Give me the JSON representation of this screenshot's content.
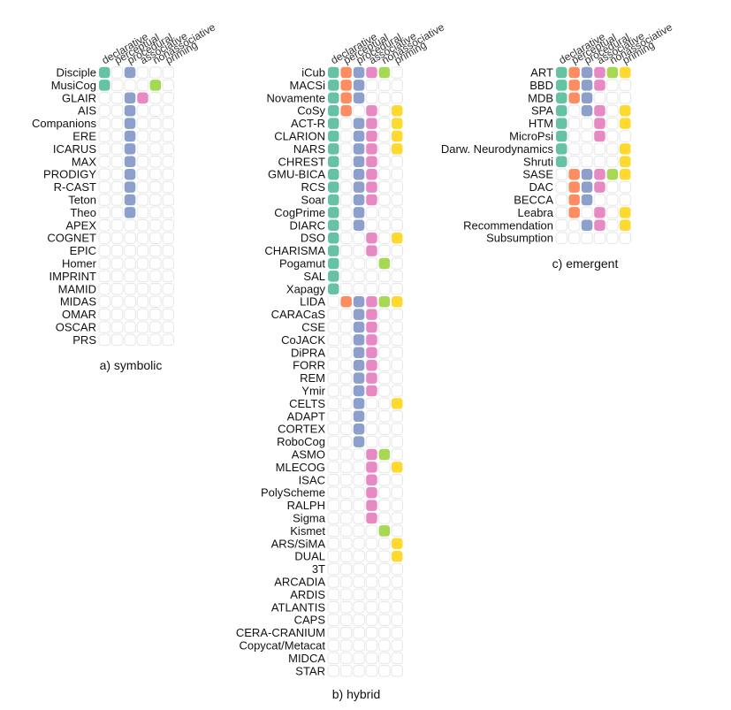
{
  "chart_data": {
    "type": "heatmap",
    "columns": [
      "declarative",
      "perceptual",
      "procedural",
      "associative",
      "nonassociative",
      "priming"
    ],
    "colors": {
      "declarative": "#66c2a5",
      "perceptual": "#fc8d62",
      "procedural": "#8da0cb",
      "associative": "#e78ac3",
      "nonassociative": "#a6d854",
      "priming": "#ffd92f",
      "empty_stroke": "#e6e6e6"
    },
    "panels": [
      {
        "title": "a) symbolic",
        "rows": [
          {
            "label": "Disciple",
            "values": [
              1,
              0,
              1,
              0,
              0,
              0
            ]
          },
          {
            "label": "MusiCog",
            "values": [
              1,
              0,
              0,
              0,
              1,
              0
            ]
          },
          {
            "label": "GLAIR",
            "values": [
              0,
              0,
              1,
              1,
              0,
              0
            ]
          },
          {
            "label": "AIS",
            "values": [
              0,
              0,
              1,
              0,
              0,
              0
            ]
          },
          {
            "label": "Companions",
            "values": [
              0,
              0,
              1,
              0,
              0,
              0
            ]
          },
          {
            "label": "ERE",
            "values": [
              0,
              0,
              1,
              0,
              0,
              0
            ]
          },
          {
            "label": "ICARUS",
            "values": [
              0,
              0,
              1,
              0,
              0,
              0
            ]
          },
          {
            "label": "MAX",
            "values": [
              0,
              0,
              1,
              0,
              0,
              0
            ]
          },
          {
            "label": "PRODIGY",
            "values": [
              0,
              0,
              1,
              0,
              0,
              0
            ]
          },
          {
            "label": "R-CAST",
            "values": [
              0,
              0,
              1,
              0,
              0,
              0
            ]
          },
          {
            "label": "Teton",
            "values": [
              0,
              0,
              1,
              0,
              0,
              0
            ]
          },
          {
            "label": "Theo",
            "values": [
              0,
              0,
              1,
              0,
              0,
              0
            ]
          },
          {
            "label": "APEX",
            "values": [
              0,
              0,
              0,
              0,
              0,
              0
            ]
          },
          {
            "label": "COGNET",
            "values": [
              0,
              0,
              0,
              0,
              0,
              0
            ]
          },
          {
            "label": "EPIC",
            "values": [
              0,
              0,
              0,
              0,
              0,
              0
            ]
          },
          {
            "label": "Homer",
            "values": [
              0,
              0,
              0,
              0,
              0,
              0
            ]
          },
          {
            "label": "IMPRINT",
            "values": [
              0,
              0,
              0,
              0,
              0,
              0
            ]
          },
          {
            "label": "MAMID",
            "values": [
              0,
              0,
              0,
              0,
              0,
              0
            ]
          },
          {
            "label": "MIDAS",
            "values": [
              0,
              0,
              0,
              0,
              0,
              0
            ]
          },
          {
            "label": "OMAR",
            "values": [
              0,
              0,
              0,
              0,
              0,
              0
            ]
          },
          {
            "label": "OSCAR",
            "values": [
              0,
              0,
              0,
              0,
              0,
              0
            ]
          },
          {
            "label": "PRS",
            "values": [
              0,
              0,
              0,
              0,
              0,
              0
            ]
          }
        ]
      },
      {
        "title": "b) hybrid",
        "rows": [
          {
            "label": "iCub",
            "values": [
              1,
              1,
              1,
              1,
              1,
              0
            ]
          },
          {
            "label": "MACSi",
            "values": [
              1,
              1,
              1,
              0,
              0,
              0
            ]
          },
          {
            "label": "Novamente",
            "values": [
              1,
              1,
              1,
              0,
              0,
              0
            ]
          },
          {
            "label": "CoSy",
            "values": [
              1,
              1,
              0,
              1,
              0,
              1
            ]
          },
          {
            "label": "ACT-R",
            "values": [
              1,
              0,
              1,
              1,
              0,
              1
            ]
          },
          {
            "label": "CLARION",
            "values": [
              1,
              0,
              1,
              1,
              0,
              1
            ]
          },
          {
            "label": "NARS",
            "values": [
              1,
              0,
              1,
              1,
              0,
              1
            ]
          },
          {
            "label": "CHREST",
            "values": [
              1,
              0,
              1,
              1,
              0,
              0
            ]
          },
          {
            "label": "GMU-BICA",
            "values": [
              1,
              0,
              1,
              1,
              0,
              0
            ]
          },
          {
            "label": "RCS",
            "values": [
              1,
              0,
              1,
              1,
              0,
              0
            ]
          },
          {
            "label": "Soar",
            "values": [
              1,
              0,
              1,
              1,
              0,
              0
            ]
          },
          {
            "label": "CogPrime",
            "values": [
              1,
              0,
              1,
              0,
              0,
              0
            ]
          },
          {
            "label": "DIARC",
            "values": [
              1,
              0,
              1,
              0,
              0,
              0
            ]
          },
          {
            "label": "DSO",
            "values": [
              1,
              0,
              0,
              1,
              0,
              1
            ]
          },
          {
            "label": "CHARISMA",
            "values": [
              1,
              0,
              0,
              1,
              0,
              0
            ]
          },
          {
            "label": "Pogamut",
            "values": [
              1,
              0,
              0,
              0,
              1,
              0
            ]
          },
          {
            "label": "SAL",
            "values": [
              1,
              0,
              0,
              0,
              0,
              0
            ]
          },
          {
            "label": "Xapagy",
            "values": [
              1,
              0,
              0,
              0,
              0,
              0
            ]
          },
          {
            "label": "LIDA",
            "values": [
              0,
              1,
              1,
              1,
              1,
              1
            ]
          },
          {
            "label": "CARACaS",
            "values": [
              0,
              0,
              1,
              1,
              0,
              0
            ]
          },
          {
            "label": "CSE",
            "values": [
              0,
              0,
              1,
              1,
              0,
              0
            ]
          },
          {
            "label": "CoJACK",
            "values": [
              0,
              0,
              1,
              1,
              0,
              0
            ]
          },
          {
            "label": "DiPRA",
            "values": [
              0,
              0,
              1,
              1,
              0,
              0
            ]
          },
          {
            "label": "FORR",
            "values": [
              0,
              0,
              1,
              1,
              0,
              0
            ]
          },
          {
            "label": "REM",
            "values": [
              0,
              0,
              1,
              1,
              0,
              0
            ]
          },
          {
            "label": "Ymir",
            "values": [
              0,
              0,
              1,
              1,
              0,
              0
            ]
          },
          {
            "label": "CELTS",
            "values": [
              0,
              0,
              1,
              0,
              0,
              1
            ]
          },
          {
            "label": "ADAPT",
            "values": [
              0,
              0,
              1,
              0,
              0,
              0
            ]
          },
          {
            "label": "CORTEX",
            "values": [
              0,
              0,
              1,
              0,
              0,
              0
            ]
          },
          {
            "label": "RoboCog",
            "values": [
              0,
              0,
              1,
              0,
              0,
              0
            ]
          },
          {
            "label": "ASMO",
            "values": [
              0,
              0,
              0,
              1,
              1,
              0
            ]
          },
          {
            "label": "MLECOG",
            "values": [
              0,
              0,
              0,
              1,
              0,
              1
            ]
          },
          {
            "label": "ISAC",
            "values": [
              0,
              0,
              0,
              1,
              0,
              0
            ]
          },
          {
            "label": "PolyScheme",
            "values": [
              0,
              0,
              0,
              1,
              0,
              0
            ]
          },
          {
            "label": "RALPH",
            "values": [
              0,
              0,
              0,
              1,
              0,
              0
            ]
          },
          {
            "label": "Sigma",
            "values": [
              0,
              0,
              0,
              1,
              0,
              0
            ]
          },
          {
            "label": "Kismet",
            "values": [
              0,
              0,
              0,
              0,
              1,
              0
            ]
          },
          {
            "label": "ARS/SiMA",
            "values": [
              0,
              0,
              0,
              0,
              0,
              1
            ]
          },
          {
            "label": "DUAL",
            "values": [
              0,
              0,
              0,
              0,
              0,
              1
            ]
          },
          {
            "label": "3T",
            "values": [
              0,
              0,
              0,
              0,
              0,
              0
            ]
          },
          {
            "label": "ARCADIA",
            "values": [
              0,
              0,
              0,
              0,
              0,
              0
            ]
          },
          {
            "label": "ARDIS",
            "values": [
              0,
              0,
              0,
              0,
              0,
              0
            ]
          },
          {
            "label": "ATLANTIS",
            "values": [
              0,
              0,
              0,
              0,
              0,
              0
            ]
          },
          {
            "label": "CAPS",
            "values": [
              0,
              0,
              0,
              0,
              0,
              0
            ]
          },
          {
            "label": "CERA-CRANIUM",
            "values": [
              0,
              0,
              0,
              0,
              0,
              0
            ]
          },
          {
            "label": "Copycat/Metacat",
            "values": [
              0,
              0,
              0,
              0,
              0,
              0
            ]
          },
          {
            "label": "MIDCA",
            "values": [
              0,
              0,
              0,
              0,
              0,
              0
            ]
          },
          {
            "label": "STAR",
            "values": [
              0,
              0,
              0,
              0,
              0,
              0
            ]
          }
        ]
      },
      {
        "title": "c) emergent",
        "rows": [
          {
            "label": "ART",
            "values": [
              1,
              1,
              1,
              1,
              1,
              1
            ]
          },
          {
            "label": "BBD",
            "values": [
              1,
              1,
              1,
              1,
              0,
              0
            ]
          },
          {
            "label": "MDB",
            "values": [
              1,
              1,
              1,
              0,
              0,
              0
            ]
          },
          {
            "label": "SPA",
            "values": [
              1,
              0,
              1,
              1,
              0,
              1
            ]
          },
          {
            "label": "HTM",
            "values": [
              1,
              0,
              0,
              1,
              0,
              1
            ]
          },
          {
            "label": "MicroPsi",
            "values": [
              1,
              0,
              0,
              1,
              0,
              0
            ]
          },
          {
            "label": "Darw. Neurodynamics",
            "values": [
              1,
              0,
              0,
              0,
              0,
              1
            ]
          },
          {
            "label": "Shruti",
            "values": [
              1,
              0,
              0,
              0,
              0,
              1
            ]
          },
          {
            "label": "SASE",
            "values": [
              0,
              1,
              1,
              1,
              1,
              1
            ]
          },
          {
            "label": "DAC",
            "values": [
              0,
              1,
              1,
              1,
              0,
              0
            ]
          },
          {
            "label": "BECCA",
            "values": [
              0,
              1,
              1,
              0,
              0,
              0
            ]
          },
          {
            "label": "Leabra",
            "values": [
              0,
              1,
              0,
              1,
              0,
              1
            ]
          },
          {
            "label": "Recommendation",
            "values": [
              0,
              0,
              1,
              1,
              0,
              1
            ]
          },
          {
            "label": "Subsumption",
            "values": [
              0,
              0,
              0,
              0,
              0,
              0
            ]
          }
        ]
      }
    ]
  }
}
